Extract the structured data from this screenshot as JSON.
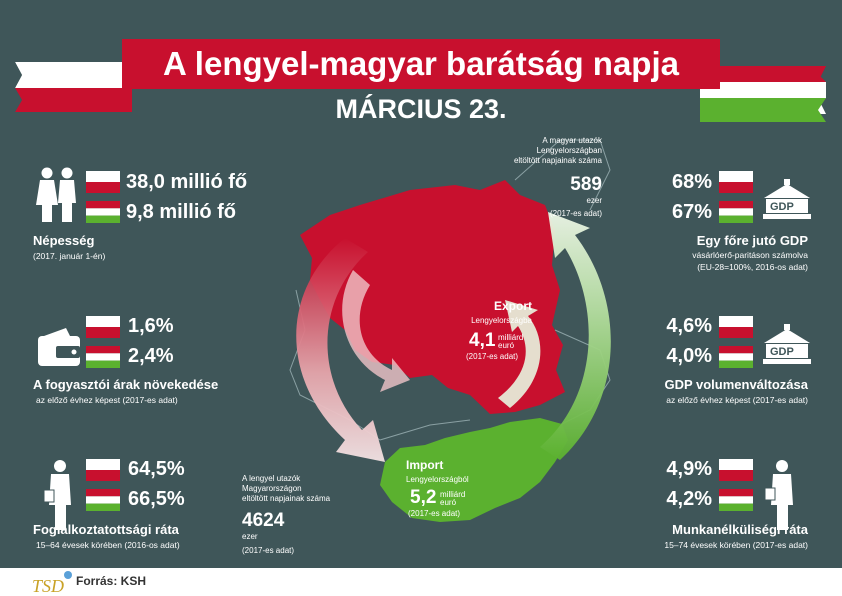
{
  "header": {
    "title": "A lengyel-magyar barátság napja",
    "date": "MÁRCIUS 23."
  },
  "colors": {
    "background": "#3f5659",
    "red": "#c8102e",
    "green": "#5bb12f",
    "white": "#ffffff"
  },
  "population": {
    "pl": "38,0 millió fő",
    "hu": "9,8 millió fő",
    "label": "Népesség",
    "note": "(2017. január 1-én)",
    "icon": "people-icon"
  },
  "inflation": {
    "pl": "1,6%",
    "hu": "2,4%",
    "label": "A fogyasztói árak növekedése",
    "note": "az előző évhez képest (2017-es adat)",
    "icon": "wallet-icon"
  },
  "employment": {
    "pl": "64,5%",
    "hu": "66,5%",
    "label": "Foglalkoztatottsági ráta",
    "note": "15–64 évesek körében (2016-os adat)",
    "icon": "businessman-icon"
  },
  "gdp_per_capita": {
    "pl": "68%",
    "hu": "67%",
    "label": "Egy főre jutó GDP",
    "note1": "vásárlóerő-paritáson számolva",
    "note2": "(EU-28=100%, 2016-os adat)",
    "badge": "GDP"
  },
  "gdp_change": {
    "pl": "4,6%",
    "hu": "4,0%",
    "label": "GDP volumenváltozása",
    "note": "az előző évhez képest (2017-es adat)",
    "badge": "GDP"
  },
  "unemployment": {
    "pl": "4,9%",
    "hu": "4,2%",
    "label": "Munkanélküliségi ráta",
    "note": "15–74 évesek körében (2017-es adat)",
    "icon": "jobseeker-icon"
  },
  "travel_hu_to_pl": {
    "line1": "A magyar utazók",
    "line2": "Lengyelországban",
    "line3": "eltöltött napjainak száma",
    "value": "589",
    "unit": "ezer",
    "note": "(2017-es adat)"
  },
  "travel_pl_to_hu": {
    "line1": "A lengyel utazók",
    "line2": "Magyarországon",
    "line3": "eltöltött napjainak száma",
    "value": "4624",
    "unit": "ezer",
    "note": "(2017-es adat)"
  },
  "export": {
    "title": "Export",
    "dest": "Lengyelországba",
    "value": "4,1",
    "unit1": "milliárd",
    "unit2": "euró",
    "note": "(2017-es adat)"
  },
  "import": {
    "title": "Import",
    "src": "Lengyelországból",
    "value": "5,2",
    "unit1": "milliárd",
    "unit2": "euró",
    "note": "(2017-es adat)"
  },
  "footer": {
    "source": "Forrás: KSH",
    "logo_text": "TSD"
  }
}
